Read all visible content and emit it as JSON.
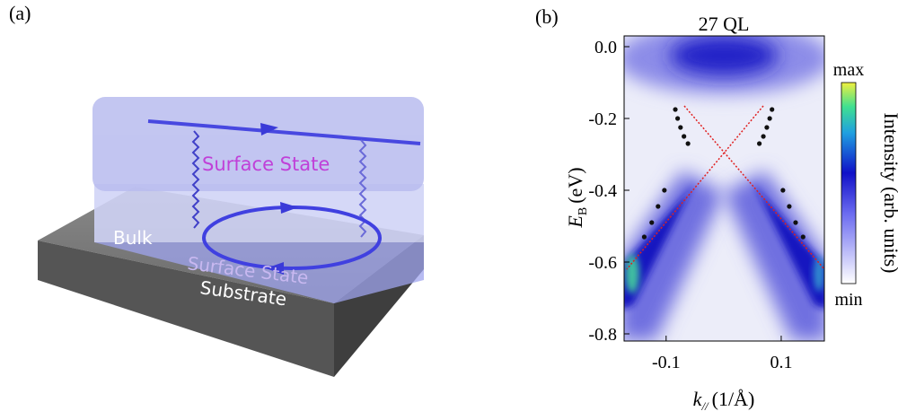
{
  "panel_a": {
    "label": "(a)",
    "top_surface": "Surface State",
    "bulk": "Bulk",
    "bottom_surface": "Surface State",
    "substrate": "Substrate"
  },
  "panel_b": {
    "label": "(b)",
    "title": "27 QL",
    "ylabel": {
      "symbol": "E",
      "subscript": "B",
      "unit": "(eV)"
    },
    "xlabel": {
      "symbol": "k",
      "subscript": "//",
      "unit": "(1/Å)"
    },
    "xlim": [
      -0.173,
      0.175
    ],
    "ylim": [
      -0.82,
      0.03
    ],
    "xticks": [
      -0.1,
      0.1
    ],
    "yticks": [
      {
        "value": 0,
        "label": "0.0"
      },
      -0.2,
      -0.4,
      -0.6,
      -0.8
    ],
    "colorbar": {
      "max": "max",
      "min": "min",
      "label": "Intensity (arb. units)"
    },
    "dots": {
      "k": [
        -0.084,
        -0.08,
        -0.075,
        -0.069,
        -0.062,
        0.084,
        0.08,
        0.075,
        0.069,
        0.062,
        -0.103,
        -0.114,
        -0.125,
        -0.138,
        0.103,
        0.114,
        0.125,
        0.138
      ],
      "E": [
        -0.175,
        -0.2,
        -0.225,
        -0.25,
        -0.27,
        -0.175,
        -0.2,
        -0.225,
        -0.25,
        -0.27,
        -0.4,
        -0.445,
        -0.49,
        -0.53,
        -0.4,
        -0.445,
        -0.49,
        -0.53
      ]
    }
  }
}
